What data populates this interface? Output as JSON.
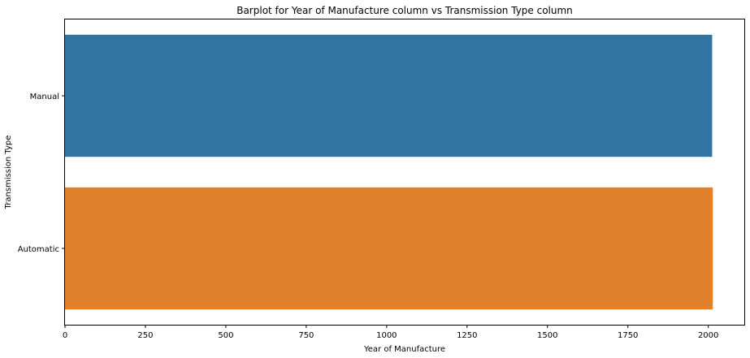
{
  "chart_data": {
    "type": "bar",
    "orientation": "horizontal",
    "title": "Barplot for Year of Manufacture column vs Transmission Type column",
    "xlabel": "Year of Manufacture",
    "ylabel": "Transmission Type",
    "categories": [
      "Manual",
      "Automatic"
    ],
    "values": [
      2012,
      2014
    ],
    "xlim": [
      0,
      2112
    ],
    "xticks": [
      0,
      250,
      500,
      750,
      1000,
      1250,
      1500,
      1750,
      2000
    ],
    "colors": [
      "#3274a1",
      "#e1812c"
    ],
    "grid": false,
    "legend": "none"
  }
}
